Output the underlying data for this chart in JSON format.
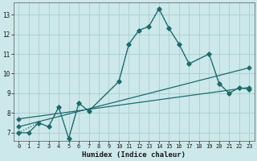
{
  "xlabel": "Humidex (Indice chaleur)",
  "bg_color": "#cce8ea",
  "grid_color": "#aacdd0",
  "line_color": "#1e6b6b",
  "xlim": [
    -0.5,
    23.5
  ],
  "ylim": [
    6.6,
    13.6
  ],
  "xticks": [
    0,
    1,
    2,
    3,
    4,
    5,
    6,
    7,
    8,
    9,
    10,
    11,
    12,
    13,
    14,
    15,
    16,
    17,
    18,
    19,
    20,
    21,
    22,
    23
  ],
  "yticks": [
    7,
    8,
    9,
    10,
    11,
    12,
    13
  ],
  "series_solid": {
    "x": [
      0,
      1,
      2,
      3,
      4,
      5,
      6,
      7,
      10,
      11,
      12,
      13,
      14,
      15,
      16,
      17,
      19,
      20,
      21,
      22,
      23
    ],
    "y": [
      7.0,
      7.0,
      7.5,
      7.3,
      8.3,
      6.7,
      8.5,
      8.1,
      9.6,
      11.5,
      12.2,
      12.4,
      13.3,
      12.3,
      11.5,
      10.5,
      11.0,
      9.5,
      9.0,
      9.3,
      9.2
    ]
  },
  "series_dotted": {
    "x": [
      0,
      2,
      3,
      4,
      5,
      6,
      7,
      10,
      11,
      12,
      13,
      14,
      15,
      16,
      17,
      19,
      20,
      21,
      22,
      23
    ],
    "y": [
      7.0,
      7.5,
      7.3,
      8.3,
      6.7,
      8.5,
      8.1,
      9.6,
      11.5,
      12.2,
      12.4,
      13.3,
      12.3,
      11.5,
      10.5,
      11.0,
      9.5,
      9.0,
      9.3,
      9.2
    ]
  },
  "series_reg1": {
    "x": [
      0,
      23
    ],
    "y": [
      7.3,
      10.3
    ]
  },
  "series_reg2": {
    "x": [
      0,
      23
    ],
    "y": [
      7.7,
      9.3
    ]
  }
}
